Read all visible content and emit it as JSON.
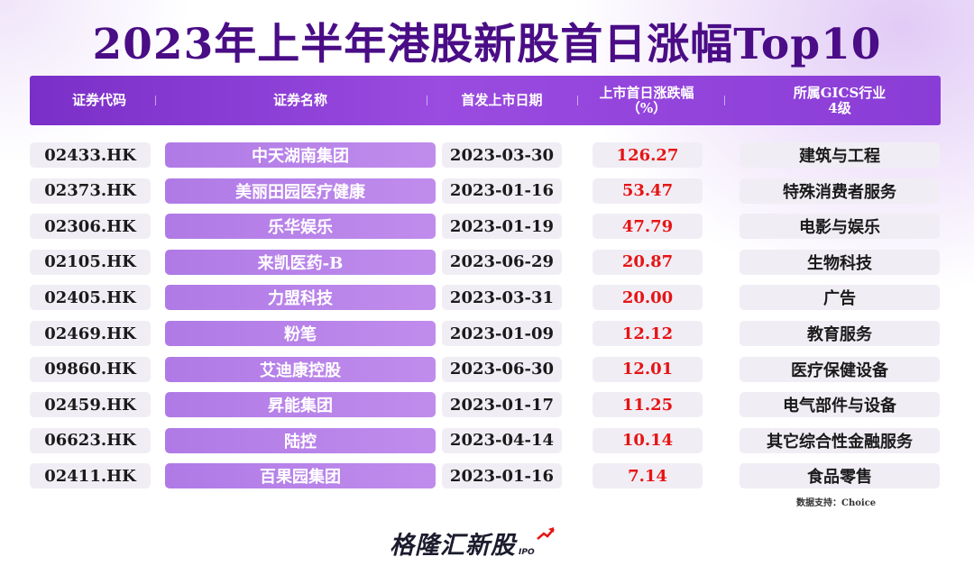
{
  "title": "2023年上半年港股新股首日涨幅Top10",
  "header": {
    "code": "证券代码",
    "name": "证券名称",
    "date": "首发上市日期",
    "change_line1": "上市首日涨跌幅",
    "change_line2": "（%）",
    "industry_line1": "所属GICS行业",
    "industry_line2": "4级"
  },
  "chart_data": {
    "type": "table",
    "title": "2023年上半年港股新股首日涨幅Top10",
    "columns": [
      "证券代码",
      "证券名称",
      "首发上市日期",
      "上市首日涨跌幅（%）",
      "所属GICS行业4级"
    ],
    "rows": [
      {
        "code": "02433.HK",
        "name": "中天湖南集团",
        "date": "2023-03-30",
        "change": "126.27",
        "industry": "建筑与工程"
      },
      {
        "code": "02373.HK",
        "name": "美丽田园医疗健康",
        "date": "2023-01-16",
        "change": "53.47",
        "industry": "特殊消费者服务"
      },
      {
        "code": "02306.HK",
        "name": "乐华娱乐",
        "date": "2023-01-19",
        "change": "47.79",
        "industry": "电影与娱乐"
      },
      {
        "code": "02105.HK",
        "name": "来凯医药-B",
        "date": "2023-06-29",
        "change": "20.87",
        "industry": "生物科技"
      },
      {
        "code": "02405.HK",
        "name": "力盟科技",
        "date": "2023-03-31",
        "change": "20.00",
        "industry": "广告"
      },
      {
        "code": "02469.HK",
        "name": "粉笔",
        "date": "2023-01-09",
        "change": "12.12",
        "industry": "教育服务"
      },
      {
        "code": "09860.HK",
        "name": "艾迪康控股",
        "date": "2023-06-30",
        "change": "12.01",
        "industry": "医疗保健设备"
      },
      {
        "code": "02459.HK",
        "name": "昇能集团",
        "date": "2023-01-17",
        "change": "11.25",
        "industry": "电气部件与设备"
      },
      {
        "code": "06623.HK",
        "name": "陆控",
        "date": "2023-04-14",
        "change": "10.14",
        "industry": "其它综合性金融服务"
      },
      {
        "code": "02411.HK",
        "name": "百果园集团",
        "date": "2023-01-16",
        "change": "7.14",
        "industry": "食品零售"
      }
    ]
  },
  "source": "数据支持：Choice",
  "logo": {
    "text": "格隆汇新股",
    "suffix": "IPO"
  },
  "colors": {
    "title": "#4a0d86",
    "header": "#8a3dd6",
    "name_cell": "#b583e8",
    "positive": "#e61414",
    "cell_bg": "#f1edf5"
  }
}
